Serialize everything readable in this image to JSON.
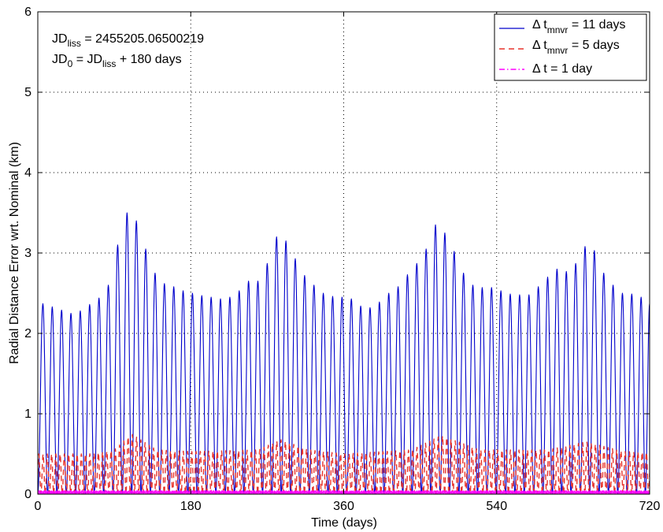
{
  "chart_data": {
    "type": "line",
    "xlabel": "Time (days)",
    "ylabel": "Radial Distance Error wrt. Nominal (km)",
    "xlim": [
      0,
      720
    ],
    "ylim": [
      0,
      6
    ],
    "x_ticks": [
      "0",
      "180",
      "360",
      "540",
      "720"
    ],
    "y_ticks": [
      "0",
      "1",
      "2",
      "3",
      "4",
      "5",
      "6"
    ],
    "grid": true,
    "legend_position": "top-right",
    "annotation": {
      "line1": {
        "base": "JD",
        "sub": "liss",
        "rest": " =  2455205.06500219"
      },
      "line2": {
        "base": "JD",
        "sub": "0",
        "rest1": " = JD",
        "sub2": "liss",
        "rest2": " + 180 days"
      }
    },
    "series": [
      {
        "legend_prefix": "Δ t",
        "legend_sub": "mnvr",
        "legend_suffix": " = 11 days",
        "color": "#0000cc",
        "style": "solid",
        "period_days": 11.25,
        "peaks": [
          [
            6,
            2.37
          ],
          [
            17,
            2.33
          ],
          [
            28,
            2.29
          ],
          [
            39,
            2.25
          ],
          [
            50,
            2.28
          ],
          [
            61,
            2.36
          ],
          [
            72,
            2.44
          ],
          [
            83,
            2.6
          ],
          [
            94,
            3.1
          ],
          [
            105,
            3.5
          ],
          [
            116,
            3.4
          ],
          [
            127,
            3.05
          ],
          [
            138,
            2.75
          ],
          [
            149,
            2.62
          ],
          [
            160,
            2.58
          ],
          [
            171,
            2.53
          ],
          [
            182,
            2.5
          ],
          [
            193,
            2.47
          ],
          [
            204,
            2.45
          ],
          [
            215,
            2.43
          ],
          [
            226,
            2.45
          ],
          [
            237,
            2.53
          ],
          [
            248,
            2.65
          ],
          [
            259,
            2.65
          ],
          [
            270,
            2.87
          ],
          [
            281,
            3.2
          ],
          [
            292,
            3.15
          ],
          [
            303,
            2.93
          ],
          [
            314,
            2.72
          ],
          [
            325,
            2.6
          ],
          [
            336,
            2.5
          ],
          [
            347,
            2.46
          ],
          [
            358,
            2.45
          ],
          [
            369,
            2.43
          ],
          [
            380,
            2.34
          ],
          [
            391,
            2.32
          ],
          [
            402,
            2.39
          ],
          [
            413,
            2.5
          ],
          [
            424,
            2.58
          ],
          [
            435,
            2.73
          ],
          [
            446,
            2.87
          ],
          [
            457,
            3.05
          ],
          [
            468,
            3.35
          ],
          [
            479,
            3.25
          ],
          [
            490,
            3.02
          ],
          [
            501,
            2.75
          ],
          [
            512,
            2.6
          ],
          [
            523,
            2.57
          ],
          [
            534,
            2.57
          ],
          [
            545,
            2.53
          ],
          [
            556,
            2.49
          ],
          [
            567,
            2.48
          ],
          [
            578,
            2.48
          ],
          [
            589,
            2.58
          ],
          [
            600,
            2.7
          ],
          [
            611,
            2.8
          ],
          [
            622,
            2.77
          ],
          [
            633,
            2.87
          ],
          [
            644,
            3.08
          ],
          [
            655,
            3.03
          ],
          [
            666,
            2.75
          ],
          [
            677,
            2.6
          ],
          [
            688,
            2.5
          ],
          [
            699,
            2.49
          ],
          [
            710,
            2.45
          ],
          [
            720,
            2.37
          ]
        ]
      },
      {
        "legend_prefix": "Δ t",
        "legend_sub": "mnvr",
        "legend_suffix": " = 5 days",
        "color": "#e8342b",
        "style": "dashed",
        "period_days": 5,
        "max_envelope": [
          [
            0,
            0.5
          ],
          [
            60,
            0.5
          ],
          [
            90,
            0.55
          ],
          [
            110,
            0.75
          ],
          [
            140,
            0.55
          ],
          [
            180,
            0.53
          ],
          [
            260,
            0.55
          ],
          [
            285,
            0.68
          ],
          [
            320,
            0.55
          ],
          [
            360,
            0.5
          ],
          [
            440,
            0.55
          ],
          [
            475,
            0.73
          ],
          [
            520,
            0.55
          ],
          [
            600,
            0.55
          ],
          [
            645,
            0.65
          ],
          [
            690,
            0.53
          ],
          [
            720,
            0.52
          ]
        ],
        "min_envelope": [
          [
            0,
            0.0
          ],
          [
            720,
            0.0
          ]
        ]
      },
      {
        "legend_prefix": "Δ t",
        "legend_sub": "",
        "legend_suffix": " = 1 day",
        "color": "#ff00ff",
        "style": "dashdot",
        "period_days": 1,
        "max_envelope": [
          [
            0,
            0.04
          ],
          [
            720,
            0.04
          ]
        ],
        "min_envelope": [
          [
            0,
            0.0
          ],
          [
            720,
            0.0
          ]
        ]
      }
    ]
  }
}
